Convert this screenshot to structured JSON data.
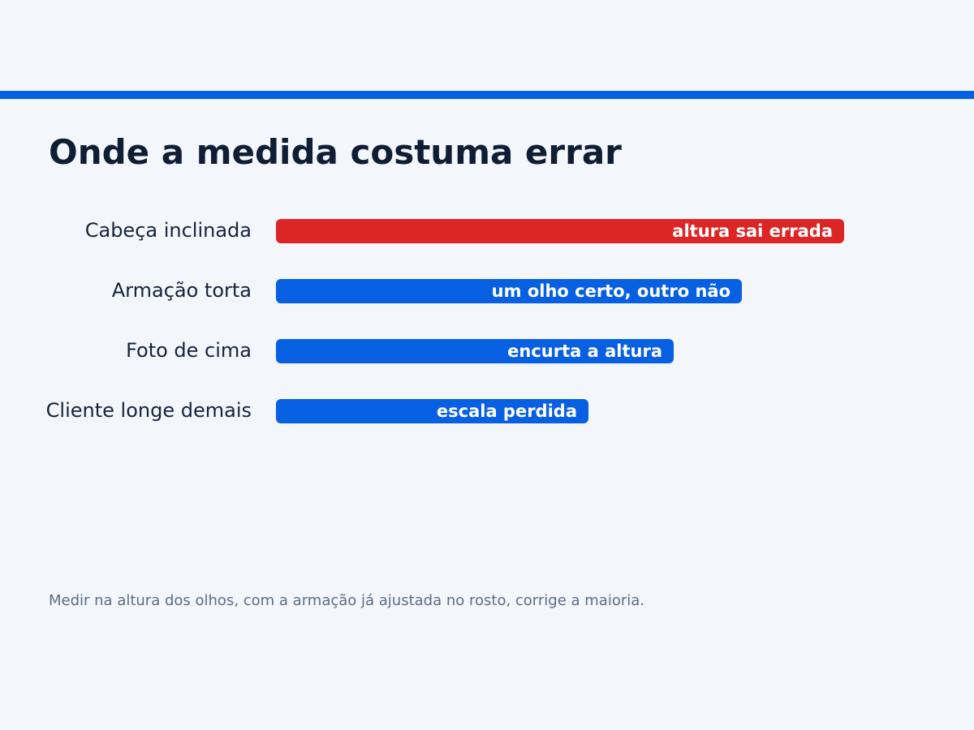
{
  "title": "Onde a medida costuma errar",
  "footnote": "Medir na altura dos olhos, com a armação já ajustada no rosto, corrige a maioria.",
  "colors": {
    "accent": "#0760e2",
    "highlight": "#dc2626",
    "background": "#f3f7fc"
  },
  "chart_data": {
    "type": "bar",
    "orientation": "horizontal",
    "categories": [
      "Cabeça inclinada",
      "Armação torta",
      "Foto de cima",
      "Cliente longe demais"
    ],
    "values": [
      100,
      82,
      70,
      55
    ],
    "annotations": [
      "altura sai errada",
      "um olho certo, outro não",
      "encurta a altura",
      "escala perdida"
    ],
    "highlighted": [
      "Cabeça inclinada"
    ],
    "xlim": [
      0,
      100
    ],
    "grid": false,
    "legend": "none"
  }
}
